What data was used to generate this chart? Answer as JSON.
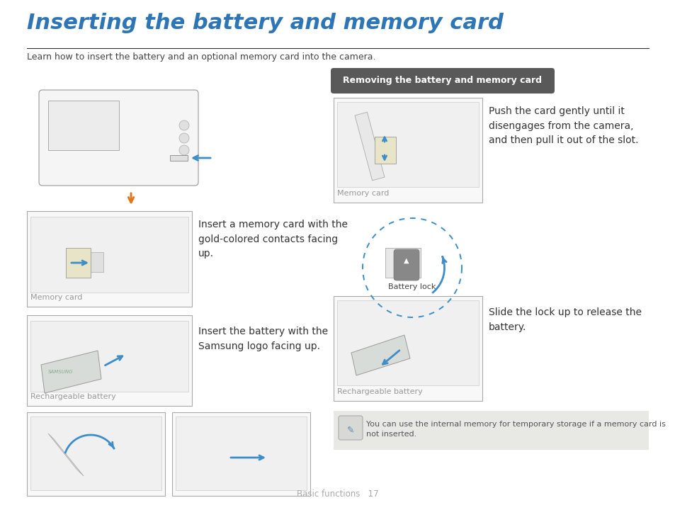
{
  "title": "Inserting the battery and memory card",
  "subtitle": "Learn how to insert the battery and an optional memory card into the camera.",
  "title_color": "#2e75b6",
  "title_fontsize": 20,
  "subtitle_fontsize": 9,
  "body_fontsize": 10,
  "footer_text": "Basic functions   17",
  "footer_color": "#aaaaaa",
  "bg_color": "#ffffff",
  "blue_color": "#3c8dc8",
  "orange_color": "#e07820",
  "dark_gray": "#555555",
  "caption_color": "#999999",
  "box_edge": "#bbbbbb",
  "box_bg": "#f8f8f8",
  "inner_bg": "#eeeeee",
  "removing_label": "Removing the battery and memory card",
  "removing_bg": "#595959",
  "insert_memory_text": "Insert a memory card with the\ngold-colored contacts facing\nup.",
  "insert_battery_text": "Insert the battery with the\nSamsung logo facing up.",
  "memory_card_caption": "Memory card",
  "rechargeable_caption": "Rechargeable battery",
  "push_card_text": "Push the card gently until it\ndisengages from the camera,\nand then pull it out of the slot.",
  "slide_lock_text": "Slide the lock up to release the\nbattery.",
  "battery_lock_label": "Battery lock",
  "memory_card_caption2": "Memory card",
  "rechargeable_caption2": "Rechargeable battery",
  "note_text": "You can use the internal memory for temporary storage if a memory card is\nnot inserted.",
  "note_bg": "#e8e8e4"
}
